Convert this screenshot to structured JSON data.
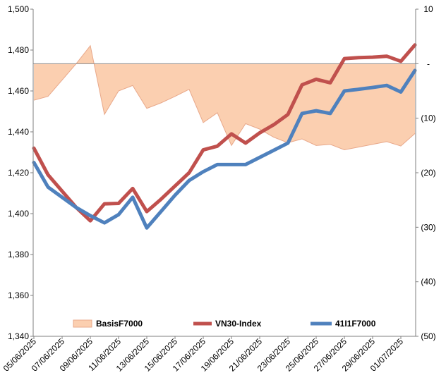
{
  "chart_data": {
    "type": "line",
    "title": "",
    "xlabel": "",
    "ylabel": "",
    "y2label": "",
    "ylim": [
      1340,
      1500
    ],
    "y2lim": [
      -10,
      50
    ],
    "y2_inverted": true,
    "grid": false,
    "legend_position": "bottom",
    "x": [
      "05/06/2025",
      "06/06/2025",
      "07/06/2025",
      "08/06/2025",
      "09/06/2025",
      "10/06/2025",
      "11/06/2025",
      "12/06/2025",
      "13/06/2025",
      "14/06/2025",
      "15/06/2025",
      "16/06/2025",
      "17/06/2025",
      "18/06/2025",
      "19/06/2025",
      "20/06/2025",
      "21/06/2025",
      "22/06/2025",
      "23/06/2025",
      "24/06/2025",
      "25/06/2025",
      "26/06/2025",
      "27/06/2025",
      "28/06/2025",
      "29/06/2025",
      "30/06/2025",
      "01/07/2025",
      "02/07/2025"
    ],
    "x_tick_labels": [
      "05/06/2025",
      "07/06/2025",
      "09/06/2025",
      "11/06/2025",
      "13/06/2025",
      "15/06/2025",
      "17/06/2025",
      "19/06/2025",
      "21/06/2025",
      "23/06/2025",
      "25/06/2025",
      "27/06/2025",
      "29/06/2025",
      "01/07/2025"
    ],
    "y_ticks": [
      "1,340",
      "1,360",
      "1,380",
      "1,400",
      "1,420",
      "1,440",
      "1,460",
      "1,480",
      "1,500"
    ],
    "y_tick_values": [
      1340,
      1360,
      1380,
      1400,
      1420,
      1440,
      1460,
      1480,
      1500
    ],
    "y2_ticks": [
      "10",
      "-",
      "(10)",
      "(20)",
      "(30)",
      "(40)",
      "(50)"
    ],
    "y2_tick_values": [
      -10,
      0,
      10,
      20,
      30,
      40,
      50
    ],
    "series": [
      {
        "name": "BasisF7000",
        "type": "area",
        "axis": "right",
        "color": "#FBCFB0",
        "stroke": "#E8A88A",
        "values": [
          6.7,
          6.0,
          3.0,
          0.0,
          -3.3,
          9.3,
          5.0,
          4.0,
          8.2,
          7.2,
          6.0,
          4.7,
          10.8,
          9.0,
          15.0,
          11.0,
          12.0,
          13.5,
          14.5,
          13.8,
          15.0,
          14.8,
          15.8,
          15.3,
          14.8,
          14.3,
          15.1,
          12.8
        ]
      },
      {
        "name": "VN30-Index",
        "type": "line",
        "axis": "left",
        "color": "#C0504D",
        "values": [
          1432,
          1419,
          1411,
          1403,
          1396.5,
          1404.8,
          1405,
          1412.3,
          1401,
          1407,
          1413.5,
          1420,
          1431.2,
          1433,
          1439,
          1434.5,
          1439.5,
          1443.5,
          1448.5,
          1463,
          1465.7,
          1464,
          1475.8,
          1476.3,
          1476.5,
          1477,
          1474.5,
          1482.5
        ]
      },
      {
        "name": "41I1F7000",
        "type": "line",
        "axis": "left",
        "color": "#4F81BD",
        "values": [
          1425,
          1413,
          1408,
          1403,
          1399,
          1395.5,
          1399.5,
          1408,
          1393,
          1401,
          1409,
          1416.2,
          1420.5,
          1424,
          1424,
          1424,
          1427.5,
          1431,
          1434.5,
          1449,
          1450.3,
          1449,
          1460,
          1460.8,
          1461.7,
          1462.7,
          1459.5,
          1470
        ]
      }
    ]
  }
}
